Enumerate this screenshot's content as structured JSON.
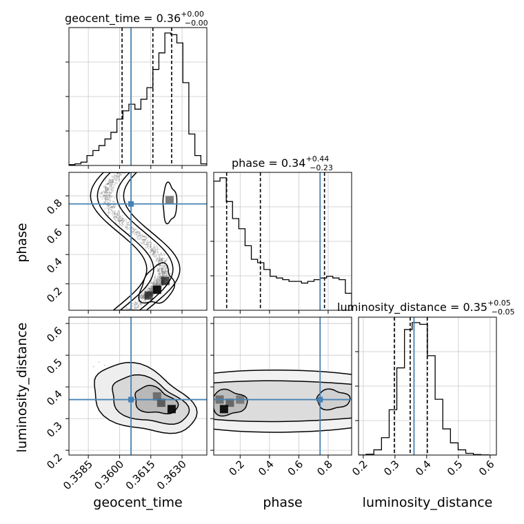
{
  "chart_data": {
    "type": "corner",
    "parameters": [
      "geocent_time",
      "phase",
      "luminosity_distance"
    ],
    "axis_labels": [
      "geocent_time",
      "phase",
      "luminosity_distance"
    ],
    "truths": {
      "geocent_time": 0.36055,
      "phase": 0.745,
      "luminosity_distance": 0.36
    },
    "titles": [
      {
        "param": "geocent_time",
        "text": "geocent_time = 0.36",
        "sup": "+0.00",
        "sub": "−0.00"
      },
      {
        "param": "phase",
        "text": "phase = 0.34",
        "sup": "+0.44",
        "sub": "−0.23"
      },
      {
        "param": "luminosity_distance",
        "text": "luminosity_distance = 0.35",
        "sup": "+0.05",
        "sub": "−0.05"
      }
    ],
    "ranges": {
      "geocent_time": [
        0.35757,
        0.36419
      ],
      "phase": [
        0.02,
        0.96
      ],
      "luminosity_distance": [
        0.185,
        0.62
      ]
    },
    "ticks": {
      "geocent_time": [
        0.3585,
        0.36,
        0.3615,
        0.363
      ],
      "phase": [
        0.2,
        0.4,
        0.6,
        0.8
      ],
      "luminosity_distance": [
        0.2,
        0.3,
        0.4,
        0.5,
        0.6
      ]
    },
    "tick_labels": {
      "geocent_time": [
        "0.3585",
        "0.3600",
        "0.3615",
        "0.3630"
      ],
      "phase": [
        "0.2",
        "0.4",
        "0.6",
        "0.8"
      ],
      "luminosity_distance": [
        "0.2",
        "0.3",
        "0.4",
        "0.5",
        "0.6"
      ]
    },
    "quantiles": {
      "geocent_time": [
        0.36012,
        0.3616,
        0.3625
      ],
      "phase": [
        0.108,
        0.338,
        0.775
      ],
      "luminosity_distance": [
        0.298,
        0.348,
        0.402
      ]
    },
    "histograms": {
      "geocent_time": [
        0.5,
        1,
        2,
        6,
        9,
        12,
        16,
        20,
        28,
        33,
        37,
        34,
        40,
        47,
        58,
        68,
        80,
        79,
        74,
        50,
        19,
        6,
        1
      ],
      "phase": [
        38,
        39,
        32,
        27,
        24,
        19,
        15,
        14,
        12,
        10,
        9.5,
        9,
        8.5,
        8.5,
        8,
        8.5,
        9,
        9.5,
        10,
        9.5,
        9,
        5
      ],
      "luminosity_distance": [
        0.05,
        0.5,
        3,
        10,
        26,
        50,
        72,
        76,
        75,
        57,
        32,
        15,
        7,
        3,
        1,
        0.3,
        0.1,
        0
      ]
    },
    "grid": true,
    "truth_color": "#4682b4"
  }
}
